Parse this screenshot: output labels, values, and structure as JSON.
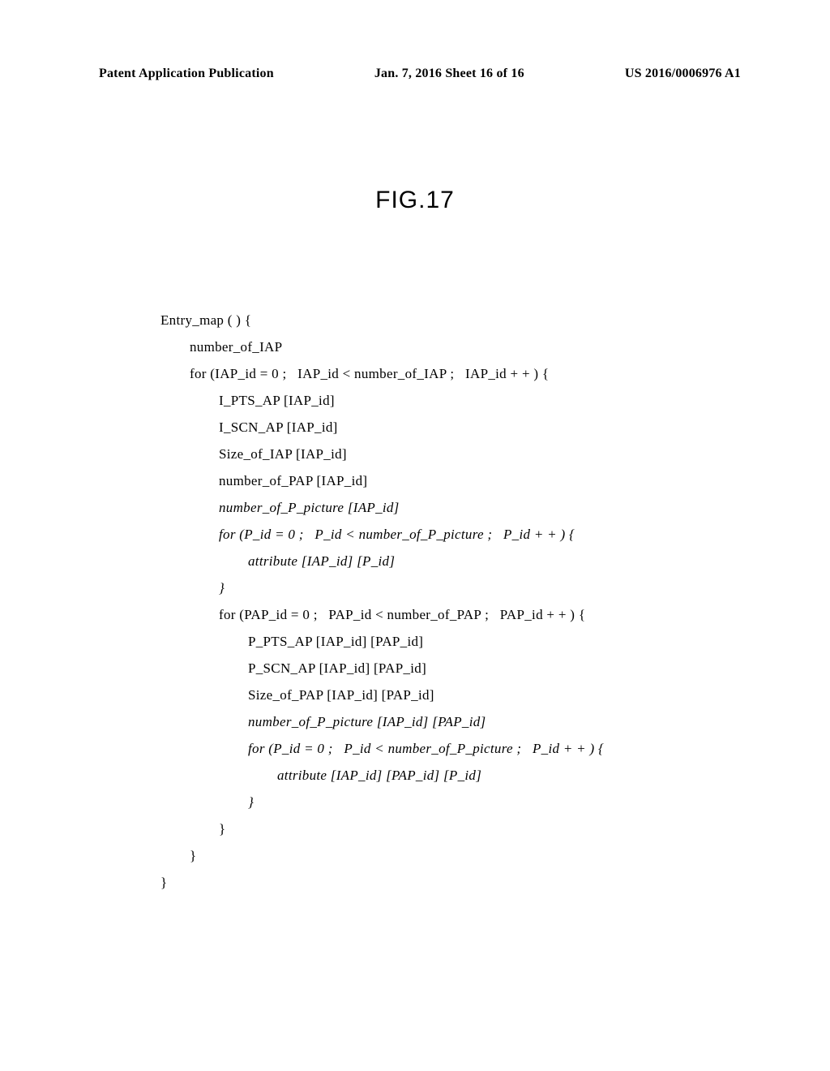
{
  "header": {
    "left": "Patent Application Publication",
    "center": "Jan. 7, 2016  Sheet 16 of 16",
    "right": "US 2016/0006976 A1"
  },
  "figure": {
    "title": "FIG.17"
  },
  "code": {
    "lines": [
      {
        "indent": 0,
        "text": "Entry_map ( ) {",
        "italic": false
      },
      {
        "indent": 1,
        "text": "number_of_IAP",
        "italic": false
      },
      {
        "indent": 1,
        "text": "for (IAP_id = 0 ;   IAP_id < number_of_IAP ;   IAP_id + + ) {",
        "italic": false
      },
      {
        "indent": 2,
        "text": "I_PTS_AP [IAP_id]",
        "italic": false
      },
      {
        "indent": 2,
        "text": "I_SCN_AP [IAP_id]",
        "italic": false
      },
      {
        "indent": 2,
        "text": "Size_of_IAP [IAP_id]",
        "italic": false
      },
      {
        "indent": 2,
        "text": "number_of_PAP [IAP_id]",
        "italic": false
      },
      {
        "indent": 2,
        "text": "number_of_P_picture [IAP_id]",
        "italic": true
      },
      {
        "indent": 2,
        "text": "for (P_id = 0 ;   P_id < number_of_P_picture ;   P_id + + ) {",
        "italic": true
      },
      {
        "indent": 3,
        "text": "attribute [IAP_id] [P_id]",
        "italic": true
      },
      {
        "indent": 2,
        "text": "}",
        "italic": true
      },
      {
        "indent": 2,
        "text": "for (PAP_id = 0 ;   PAP_id < number_of_PAP ;   PAP_id + + ) {",
        "italic": false
      },
      {
        "indent": 3,
        "text": "P_PTS_AP [IAP_id] [PAP_id]",
        "italic": false
      },
      {
        "indent": 3,
        "text": "P_SCN_AP [IAP_id] [PAP_id]",
        "italic": false
      },
      {
        "indent": 3,
        "text": "Size_of_PAP [IAP_id] [PAP_id]",
        "italic": false
      },
      {
        "indent": 3,
        "text": "number_of_P_picture [IAP_id] [PAP_id]",
        "italic": true
      },
      {
        "indent": 3,
        "text": "for (P_id = 0 ;   P_id < number_of_P_picture ;   P_id + + ) {",
        "italic": true
      },
      {
        "indent": 4,
        "text": "attribute [IAP_id] [PAP_id] [P_id]",
        "italic": true
      },
      {
        "indent": 3,
        "text": "}",
        "italic": true
      },
      {
        "indent": 2,
        "text": "}",
        "italic": false
      },
      {
        "indent": 1,
        "text": "}",
        "italic": false
      },
      {
        "indent": 0,
        "text": "}",
        "italic": false
      }
    ],
    "indent_size": 36
  }
}
